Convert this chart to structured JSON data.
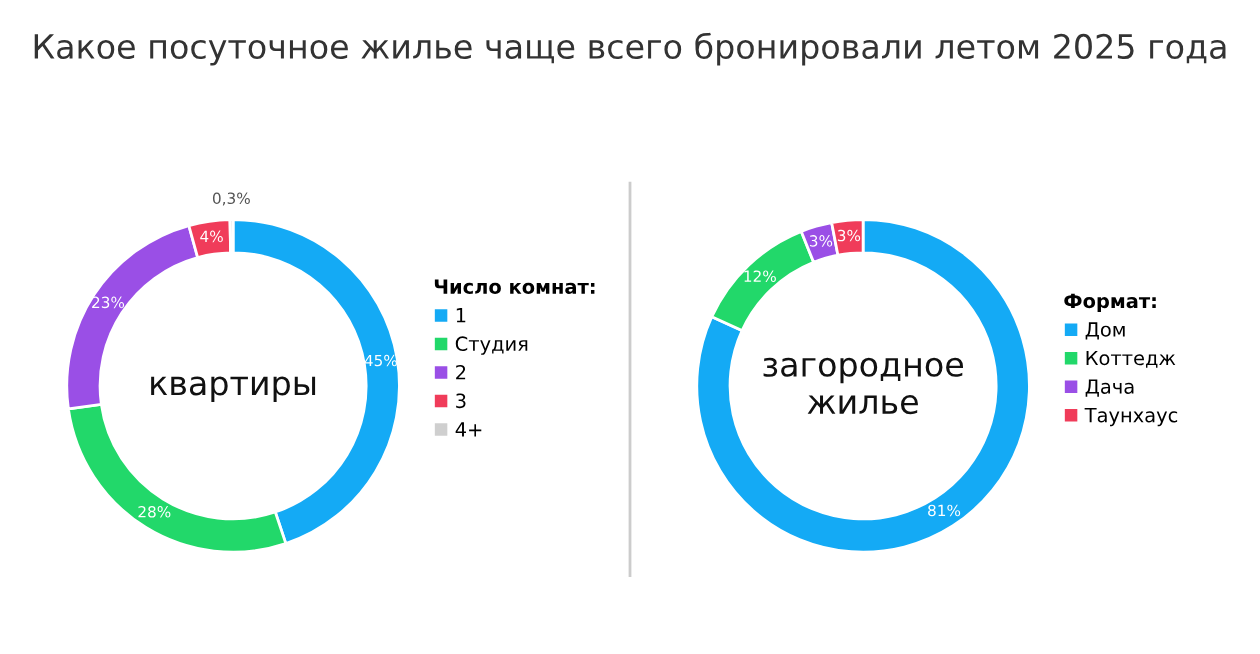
{
  "chart_data": [
    {
      "type": "donut",
      "title": "Какое посуточное жилье чаще всего бронировали летом 2025 года",
      "legend_title": "Число комнат:",
      "legend": "right",
      "annotations": [
        "квартиры"
      ],
      "categories": [
        "1",
        "Студия",
        "2",
        "3",
        "4+"
      ],
      "values": [
        45,
        28,
        23,
        4,
        0.3
      ],
      "value_labels": [
        "45%",
        "28%",
        "23%",
        "4%",
        "0,3%"
      ],
      "colors": [
        "#14aaf5",
        "#22d86a",
        "#9a4fe6",
        "#f03c5a",
        "#cfcfcf"
      ]
    },
    {
      "type": "donut",
      "legend_title": "Формат:",
      "legend": "right",
      "annotations": [
        "загородное\nжилье"
      ],
      "categories": [
        "Дом",
        "Коттедж",
        "Дача",
        "Таунхаус"
      ],
      "values": [
        81,
        12,
        3,
        3
      ],
      "value_labels": [
        "81%",
        "12%",
        "3%",
        "3%"
      ],
      "colors": [
        "#14aaf5",
        "#22d86a",
        "#9a4fe6",
        "#f03c5a"
      ]
    }
  ]
}
